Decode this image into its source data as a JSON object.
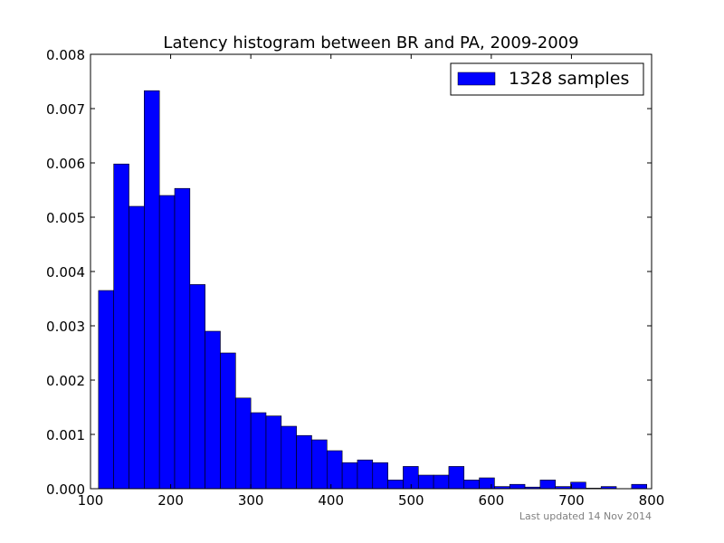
{
  "chart_data": {
    "type": "histogram",
    "title": "Latency histogram between BR and PA, 2009-2009",
    "xlabel": "",
    "ylabel": "",
    "xlim": [
      100,
      800
    ],
    "ylim": [
      0,
      0.008
    ],
    "x_ticks": [
      "100",
      "200",
      "300",
      "400",
      "500",
      "600",
      "700",
      "800"
    ],
    "y_ticks": [
      "0.000",
      "0.001",
      "0.002",
      "0.003",
      "0.004",
      "0.005",
      "0.006",
      "0.007",
      "0.008"
    ],
    "grid": false,
    "legend_position": "top-right",
    "series": [
      {
        "name": "1328 samples",
        "color": "#0000ff",
        "bins": [
          {
            "x0": 110,
            "x1": 129,
            "value": 0.00365
          },
          {
            "x0": 129,
            "x1": 148,
            "value": 0.00598
          },
          {
            "x0": 148,
            "x1": 167,
            "value": 0.0052
          },
          {
            "x0": 167,
            "x1": 186,
            "value": 0.00733
          },
          {
            "x0": 186,
            "x1": 205,
            "value": 0.0054
          },
          {
            "x0": 205,
            "x1": 224,
            "value": 0.00553
          },
          {
            "x0": 224,
            "x1": 243,
            "value": 0.00376
          },
          {
            "x0": 243,
            "x1": 262,
            "value": 0.0029
          },
          {
            "x0": 262,
            "x1": 281,
            "value": 0.0025
          },
          {
            "x0": 281,
            "x1": 300,
            "value": 0.00167
          },
          {
            "x0": 300,
            "x1": 319,
            "value": 0.0014
          },
          {
            "x0": 319,
            "x1": 338,
            "value": 0.00134
          },
          {
            "x0": 338,
            "x1": 357,
            "value": 0.00115
          },
          {
            "x0": 357,
            "x1": 376,
            "value": 0.00098
          },
          {
            "x0": 376,
            "x1": 395,
            "value": 0.0009
          },
          {
            "x0": 395,
            "x1": 414,
            "value": 0.0007
          },
          {
            "x0": 414,
            "x1": 433,
            "value": 0.00048
          },
          {
            "x0": 433,
            "x1": 452,
            "value": 0.00053
          },
          {
            "x0": 452,
            "x1": 471,
            "value": 0.00048
          },
          {
            "x0": 471,
            "x1": 490,
            "value": 0.00016
          },
          {
            "x0": 490,
            "x1": 509,
            "value": 0.00041
          },
          {
            "x0": 509,
            "x1": 528,
            "value": 0.00025
          },
          {
            "x0": 528,
            "x1": 547,
            "value": 0.00025
          },
          {
            "x0": 547,
            "x1": 566,
            "value": 0.00041
          },
          {
            "x0": 566,
            "x1": 585,
            "value": 0.00016
          },
          {
            "x0": 585,
            "x1": 604,
            "value": 0.0002
          },
          {
            "x0": 604,
            "x1": 623,
            "value": 4e-05
          },
          {
            "x0": 623,
            "x1": 642,
            "value": 8e-05
          },
          {
            "x0": 642,
            "x1": 661,
            "value": 3e-05
          },
          {
            "x0": 661,
            "x1": 680,
            "value": 0.00016
          },
          {
            "x0": 680,
            "x1": 699,
            "value": 4e-05
          },
          {
            "x0": 699,
            "x1": 718,
            "value": 0.00012
          },
          {
            "x0": 718,
            "x1": 737,
            "value": 1e-05
          },
          {
            "x0": 737,
            "x1": 756,
            "value": 4e-05
          },
          {
            "x0": 756,
            "x1": 775,
            "value": 0.0
          },
          {
            "x0": 775,
            "x1": 794,
            "value": 8e-05
          }
        ]
      }
    ]
  },
  "footer": {
    "updated": "Last updated 14 Nov 2014"
  }
}
